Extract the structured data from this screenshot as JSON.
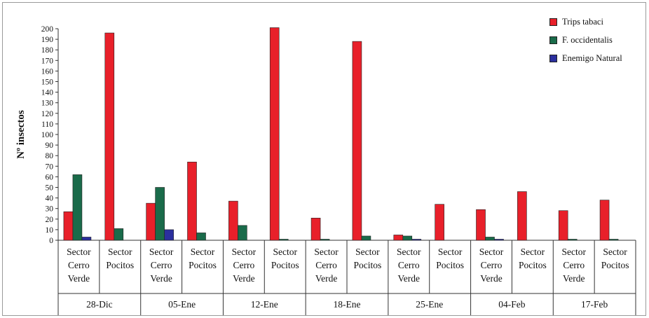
{
  "chart_data": {
    "type": "bar",
    "ylabel": "Nº insectos",
    "xlabel": "",
    "ylim": [
      0,
      200
    ],
    "yticks": [
      0,
      10,
      20,
      30,
      40,
      50,
      60,
      70,
      80,
      90,
      100,
      110,
      120,
      130,
      140,
      150,
      160,
      170,
      180,
      190,
      200
    ],
    "groups": [
      "28-Dic",
      "05-Ene",
      "12-Ene",
      "18-Ene",
      "25-Ene",
      "04-Feb",
      "17-Feb"
    ],
    "sector_labels": [
      [
        "Sector",
        "Cerro",
        "Verde"
      ],
      [
        "Sector",
        "Pocitos"
      ]
    ],
    "categories": [
      "28-Dic Sector Cerro Verde",
      "28-Dic Sector Pocitos",
      "05-Ene Sector Cerro Verde",
      "05-Ene Sector Pocitos",
      "12-Ene Sector Cerro Verde",
      "12-Ene Sector Pocitos",
      "18-Ene Sector Cerro Verde",
      "18-Ene Sector Pocitos",
      "25-Ene Sector Cerro Verde",
      "25-Ene Sector Pocitos",
      "04-Feb Sector Cerro Verde",
      "04-Feb Sector Pocitos",
      "17-Feb Sector Cerro Verde",
      "17-Feb Sector Pocitos"
    ],
    "series": [
      {
        "name": "Trips tabaci",
        "color": "#e8202a",
        "values": [
          27,
          196,
          35,
          74,
          37,
          201,
          21,
          188,
          5,
          34,
          29,
          46,
          28,
          38
        ]
      },
      {
        "name": "F. occidentalis",
        "color": "#1a6b4a",
        "values": [
          62,
          11,
          50,
          7,
          14,
          1,
          1,
          4,
          4,
          0,
          3,
          0,
          1,
          1
        ]
      },
      {
        "name": "Enemigo Natural",
        "color": "#2b2f9e",
        "values": [
          3,
          0,
          10,
          0,
          0,
          0,
          0,
          0,
          1,
          0,
          1,
          0,
          0,
          0
        ]
      }
    ],
    "legend_position": "top-right",
    "grid": false
  }
}
